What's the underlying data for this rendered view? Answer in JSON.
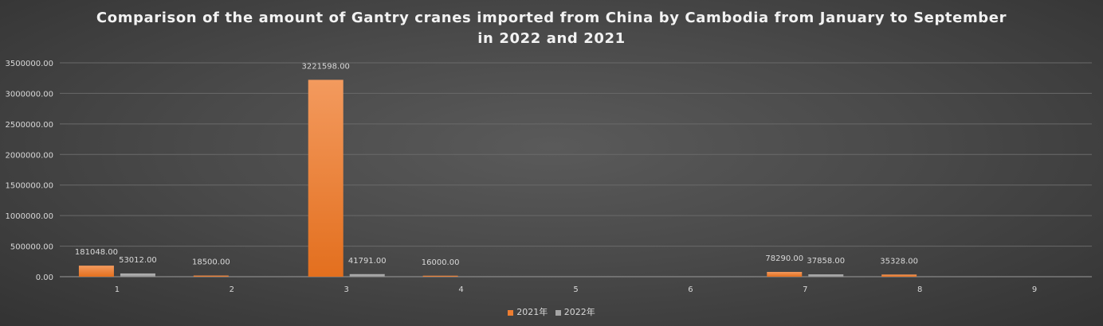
{
  "chart_data": {
    "type": "bar",
    "title_line1": "Comparison of the amount of Gantry cranes imported from China by Cambodia from January to September",
    "title_line2": "in 2022 and 2021",
    "categories": [
      "1",
      "2",
      "3",
      "4",
      "5",
      "6",
      "7",
      "8",
      "9"
    ],
    "series": [
      {
        "name": "2021年",
        "color": "#ed7d31",
        "values": [
          181048.0,
          18500.0,
          3221598.0,
          16000.0,
          null,
          null,
          78290.0,
          35328.0,
          null
        ],
        "labels": [
          "181048.00",
          "18500.00",
          "3221598.00",
          "16000.00",
          "",
          "",
          "78290.00",
          "35328.00",
          ""
        ]
      },
      {
        "name": "2022年",
        "color": "#a5a5a5",
        "values": [
          53012.0,
          null,
          41791.0,
          null,
          null,
          null,
          37858.0,
          null,
          null
        ],
        "labels": [
          "53012.00",
          "",
          "41791.00",
          "",
          "",
          "",
          "37858.00",
          "",
          ""
        ]
      }
    ],
    "ylim": [
      0,
      3500000
    ],
    "yticks": [
      "0.00",
      "500000.00",
      "1000000.00",
      "1500000.00",
      "2000000.00",
      "2500000.00",
      "3000000.00",
      "3500000.00"
    ],
    "grid": true,
    "legend_position": "bottom"
  }
}
